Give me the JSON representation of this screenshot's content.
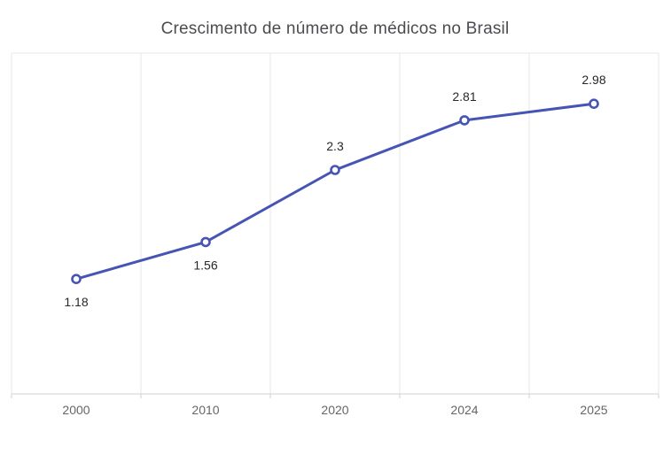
{
  "chart_data": {
    "type": "line",
    "title": "Crescimento de número de médicos no Brasil",
    "categories": [
      "2000",
      "2010",
      "2020",
      "2024",
      "2025"
    ],
    "values": [
      1.18,
      1.56,
      2.3,
      2.81,
      2.98
    ],
    "point_labels": [
      "1.18",
      "1.56",
      "2.3",
      "2.81",
      "2.98"
    ],
    "label_positions": [
      "below",
      "below",
      "above",
      "above",
      "above"
    ],
    "xlabel": "",
    "ylabel": "",
    "ylim": [
      0,
      3.5
    ],
    "grid": "vertical-band-separators-only",
    "legend": "none",
    "marker": "open-circle",
    "colors": {
      "line": "#4655b4",
      "marker_fill": "#ffffff",
      "grid": "#e7e7e7",
      "axis": "#d2d2d2",
      "title": "#494c50",
      "tick_label": "#63666a",
      "data_label": "#26282b",
      "background": "#ffffff"
    }
  }
}
